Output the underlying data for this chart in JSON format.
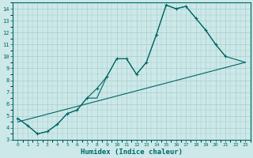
{
  "xlabel": "Humidex (Indice chaleur)",
  "xlim": [
    -0.5,
    23.5
  ],
  "ylim": [
    3,
    14.5
  ],
  "yticks": [
    3,
    4,
    5,
    6,
    7,
    8,
    9,
    10,
    11,
    12,
    13,
    14
  ],
  "xticks": [
    0,
    1,
    2,
    3,
    4,
    5,
    6,
    7,
    8,
    9,
    10,
    11,
    12,
    13,
    14,
    15,
    16,
    17,
    18,
    19,
    20,
    21,
    22,
    23
  ],
  "bg_color": "#cce8e8",
  "grid_color": "#aacccc",
  "line_color": "#006666",
  "curve1_x": [
    0,
    1,
    2,
    3,
    4,
    5,
    6,
    7,
    8,
    9,
    10,
    11,
    12,
    13,
    14,
    15,
    16,
    17,
    18,
    19,
    20,
    21
  ],
  "curve1_y": [
    4.8,
    4.2,
    3.5,
    3.7,
    4.3,
    5.2,
    5.5,
    6.5,
    7.3,
    8.3,
    9.8,
    9.8,
    8.5,
    9.5,
    11.8,
    14.3,
    14.0,
    14.2,
    13.2,
    12.2,
    11.0,
    10.0
  ],
  "curve2_x": [
    0,
    1,
    2,
    3,
    4,
    5,
    6,
    7,
    8,
    9,
    10,
    11,
    12,
    13,
    14,
    15,
    16,
    17,
    18,
    19,
    20,
    21,
    23
  ],
  "curve2_y": [
    4.8,
    4.2,
    3.5,
    3.7,
    4.3,
    5.2,
    5.5,
    6.5,
    6.5,
    8.3,
    9.8,
    9.8,
    8.5,
    9.5,
    11.8,
    14.3,
    14.0,
    14.2,
    13.2,
    12.2,
    11.0,
    10.0,
    9.5
  ],
  "trend_x": [
    0,
    23
  ],
  "trend_y": [
    4.5,
    9.5
  ]
}
